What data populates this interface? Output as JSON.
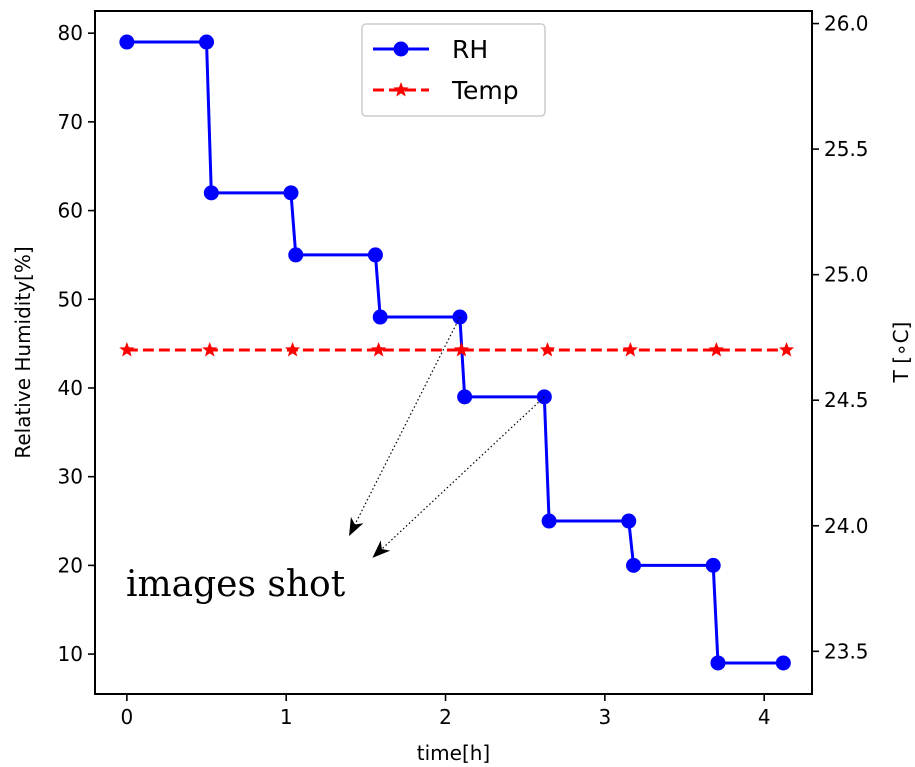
{
  "chart_data": {
    "type": "line",
    "xlabel": "time[h]",
    "ylabel_left": "Relative Humidity[%]",
    "ylabel_right": "T [∘C]",
    "xlim": [
      -0.2,
      4.3
    ],
    "ylim_left": [
      5.5,
      82.5
    ],
    "ylim_right": [
      23.33,
      26.05
    ],
    "x_ticks": [
      "0",
      "1",
      "2",
      "3",
      "4"
    ],
    "y_ticks_left": [
      "10",
      "20",
      "30",
      "40",
      "50",
      "60",
      "70",
      "80"
    ],
    "y_ticks_right": [
      "23.5",
      "24.0",
      "24.5",
      "25.0",
      "25.5",
      "26.0"
    ],
    "series": [
      {
        "name": "RH",
        "axis": "left",
        "color": "#0000ff",
        "marker": "circle",
        "linestyle": "solid",
        "x": [
          0,
          0.5,
          0.53,
          1.03,
          1.06,
          1.56,
          1.59,
          2.09,
          2.12,
          2.62,
          2.65,
          3.15,
          3.18,
          3.68,
          3.71,
          4.12
        ],
        "y": [
          79,
          79,
          62,
          62,
          55,
          55,
          48,
          48,
          39,
          39,
          25,
          25,
          20,
          20,
          9,
          9
        ]
      },
      {
        "name": "Temp",
        "axis": "right",
        "color": "#ff0000",
        "marker": "star",
        "linestyle": "dashed",
        "x": [
          0,
          0.52,
          1.04,
          1.58,
          2.1,
          2.64,
          3.16,
          3.7,
          4.14
        ],
        "y": [
          24.7,
          24.7,
          24.7,
          24.7,
          24.7,
          24.7,
          24.7,
          24.7,
          24.7
        ]
      }
    ],
    "legend": {
      "position": "top-center",
      "entries": [
        "RH",
        "Temp"
      ]
    },
    "annotation": {
      "text": "images shot",
      "arrows": [
        {
          "from": [
            2.09,
            48
          ],
          "to": [
            1.4,
            23.5
          ]
        },
        {
          "from": [
            2.62,
            39
          ],
          "to": [
            1.55,
            21
          ]
        }
      ]
    },
    "grid": false
  }
}
